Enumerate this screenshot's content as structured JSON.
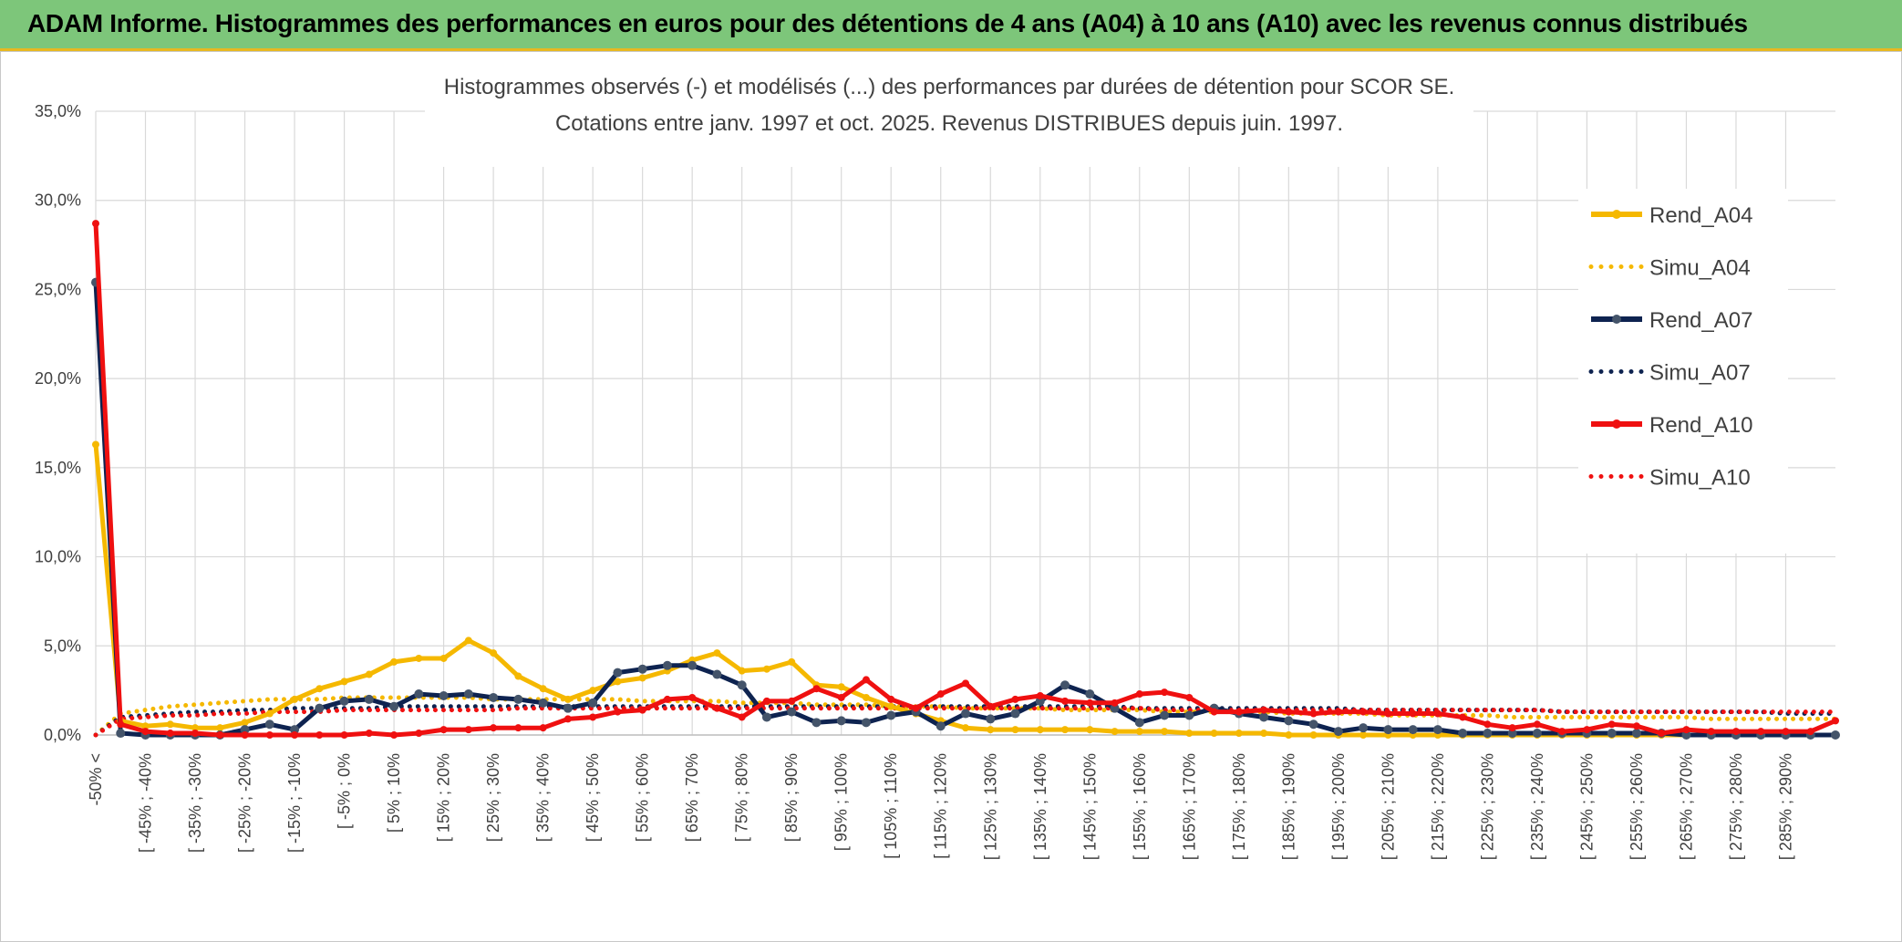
{
  "header": {
    "title": "ADAM Informe. Histogrammes des performances en euros pour des détentions de 4 ans (A04) à 10 ans (A10) avec les revenus connus distribués"
  },
  "chart_data": {
    "type": "line",
    "title_lines": [
      "Histogrammes observés (-) et modélisés (...) des performances par durées de détention pour SCOR SE.",
      "Cotations entre janv. 1997 et oct. 2025. Revenus DISTRIBUES depuis juin. 1997."
    ],
    "ylim": [
      0,
      35
    ],
    "ytick_labels": [
      "0,0%",
      "5,0%",
      "10,0%",
      "15,0%",
      "20,0%",
      "25,0%",
      "30,0%",
      "35,0%"
    ],
    "x_labels": [
      "-50% <",
      "[ -45% ; -40%",
      "[ -35% ; -30%",
      "[ -25% ; -20%",
      "[ -15% ; -10%",
      "[ -5% ; 0%",
      "[ 5% ; 10%",
      "[ 15% ; 20%",
      "[ 25% ; 30%",
      "[ 35% ; 40%",
      "[ 45% ; 50%",
      "[ 55% ; 60%",
      "[ 65% ; 70%",
      "[ 75% ; 80%",
      "[ 85% ; 90%",
      "[ 95% ; 100%",
      "[ 105% ; 110%",
      "[ 115% ; 120%",
      "[ 125% ; 130%",
      "[ 135% ; 140%",
      "[ 145% ; 150%",
      "[ 155% ; 160%",
      "[ 165% ; 170%",
      "[ 175% ; 180%",
      "[ 185% ; 190%",
      "[ 195% ; 200%",
      "[ 205% ; 210%",
      "[ 215% ; 220%",
      "[ 225% ; 230%",
      "[ 235% ; 240%",
      "[ 245% ; 250%",
      "[ 255% ; 260%",
      "[ 265% ; 270%",
      "[ 275% ; 280%",
      "[ 285% ; 290%"
    ],
    "n_points": 71,
    "series": [
      {
        "name": "Rend_A04",
        "color": "#f5b800",
        "style": "solid",
        "values": [
          16.3,
          0.8,
          0.5,
          0.6,
          0.4,
          0.4,
          0.7,
          1.2,
          2,
          2.6,
          3,
          3.4,
          4.1,
          4.3,
          4.3,
          5.3,
          4.6,
          3.3,
          2.6,
          2,
          2.5,
          3,
          3.2,
          3.6,
          4.2,
          4.6,
          3.6,
          3.7,
          4.1,
          2.8,
          2.7,
          2.1,
          1.6,
          1.2,
          0.8,
          0.4,
          0.3,
          0.3,
          0.3,
          0.3,
          0.3,
          0.2,
          0.2,
          0.2,
          0.1,
          0.1,
          0.1,
          0.1,
          0,
          0,
          0,
          0,
          0,
          0,
          0,
          0,
          0,
          0,
          0,
          0,
          0,
          0,
          0,
          0,
          0,
          0,
          0,
          0,
          0,
          0,
          0
        ]
      },
      {
        "name": "Simu_A04",
        "color": "#f5b800",
        "style": "dotted",
        "values": [
          0,
          1.2,
          1.4,
          1.6,
          1.7,
          1.8,
          1.9,
          2,
          2,
          2,
          2.1,
          2.1,
          2.1,
          2.1,
          2.1,
          2.1,
          2,
          2,
          2,
          2,
          2,
          2,
          1.9,
          1.9,
          1.9,
          1.9,
          1.8,
          1.8,
          1.8,
          1.7,
          1.7,
          1.7,
          1.6,
          1.6,
          1.6,
          1.5,
          1.5,
          1.5,
          1.5,
          1.4,
          1.4,
          1.4,
          1.4,
          1.3,
          1.3,
          1.3,
          1.3,
          1.3,
          1.2,
          1.2,
          1.2,
          1.2,
          1.1,
          1.1,
          1.1,
          1.1,
          1.1,
          1,
          1,
          1,
          1,
          1,
          1,
          1,
          1,
          0.9,
          0.9,
          0.9,
          0.9,
          0.9,
          0.9
        ]
      },
      {
        "name": "Rend_A07",
        "color": "#0e2350",
        "style": "solid",
        "values": [
          25.4,
          0.1,
          0,
          0,
          0,
          0,
          0.3,
          0.6,
          0.3,
          1.5,
          1.9,
          2,
          1.6,
          2.3,
          2.2,
          2.3,
          2.1,
          2,
          1.8,
          1.5,
          1.8,
          3.5,
          3.7,
          3.9,
          3.9,
          3.4,
          2.8,
          1,
          1.3,
          0.7,
          0.8,
          0.7,
          1.1,
          1.3,
          0.5,
          1.2,
          0.9,
          1.2,
          1.9,
          2.8,
          2.3,
          1.5,
          0.7,
          1.1,
          1.1,
          1.5,
          1.2,
          1,
          0.8,
          0.6,
          0.2,
          0.4,
          0.3,
          0.3,
          0.3,
          0.1,
          0.1,
          0.1,
          0.1,
          0.1,
          0.1,
          0.1,
          0.1,
          0.1,
          0,
          0,
          0,
          0,
          0,
          0,
          0
        ]
      },
      {
        "name": "Simu_A07",
        "color": "#0e2350",
        "style": "dotted",
        "values": [
          0,
          1,
          1.1,
          1.2,
          1.3,
          1.3,
          1.4,
          1.4,
          1.5,
          1.5,
          1.5,
          1.5,
          1.6,
          1.6,
          1.6,
          1.6,
          1.6,
          1.6,
          1.6,
          1.6,
          1.6,
          1.6,
          1.6,
          1.6,
          1.6,
          1.6,
          1.6,
          1.6,
          1.6,
          1.6,
          1.6,
          1.6,
          1.6,
          1.6,
          1.6,
          1.6,
          1.6,
          1.6,
          1.6,
          1.6,
          1.6,
          1.6,
          1.5,
          1.5,
          1.5,
          1.5,
          1.5,
          1.5,
          1.5,
          1.5,
          1.5,
          1.4,
          1.4,
          1.4,
          1.4,
          1.4,
          1.4,
          1.4,
          1.4,
          1.3,
          1.3,
          1.3,
          1.3,
          1.3,
          1.3,
          1.3,
          1.3,
          1.3,
          1.2,
          1.2,
          1.2
        ]
      },
      {
        "name": "Rend_A10",
        "color": "#ef1010",
        "style": "solid",
        "values": [
          28.7,
          0.6,
          0.2,
          0.1,
          0.1,
          0,
          0,
          0,
          0,
          0,
          0,
          0.1,
          0,
          0.1,
          0.3,
          0.3,
          0.4,
          0.4,
          0.4,
          0.9,
          1,
          1.3,
          1.4,
          2,
          2.1,
          1.5,
          1,
          1.9,
          1.9,
          2.6,
          2.1,
          3.1,
          2,
          1.5,
          2.3,
          2.9,
          1.6,
          2,
          2.2,
          1.9,
          1.8,
          1.8,
          2.3,
          2.4,
          2.1,
          1.3,
          1.3,
          1.4,
          1.3,
          1.2,
          1.3,
          1.3,
          1.2,
          1.2,
          1.2,
          1,
          0.6,
          0.4,
          0.6,
          0.2,
          0.3,
          0.6,
          0.5,
          0.1,
          0.3,
          0.2,
          0.2,
          0.2,
          0.2,
          0.2,
          0.8
        ]
      },
      {
        "name": "Simu_A10",
        "color": "#ef1010",
        "style": "dotted",
        "values": [
          0,
          0.9,
          1,
          1.1,
          1.1,
          1.2,
          1.2,
          1.3,
          1.3,
          1.3,
          1.4,
          1.4,
          1.4,
          1.4,
          1.4,
          1.4,
          1.4,
          1.5,
          1.5,
          1.5,
          1.5,
          1.5,
          1.5,
          1.5,
          1.5,
          1.5,
          1.5,
          1.5,
          1.5,
          1.5,
          1.5,
          1.5,
          1.5,
          1.5,
          1.5,
          1.5,
          1.5,
          1.5,
          1.5,
          1.5,
          1.5,
          1.5,
          1.5,
          1.4,
          1.4,
          1.4,
          1.4,
          1.4,
          1.4,
          1.4,
          1.4,
          1.4,
          1.4,
          1.4,
          1.4,
          1.4,
          1.4,
          1.4,
          1.4,
          1.3,
          1.3,
          1.3,
          1.3,
          1.3,
          1.3,
          1.3,
          1.3,
          1.3,
          1.3,
          1.3,
          1.3
        ]
      }
    ],
    "legend": [
      "Rend_A04",
      "Simu_A04",
      "Rend_A07",
      "Simu_A07",
      "Rend_A10",
      "Simu_A10"
    ],
    "legend_position": "right"
  }
}
